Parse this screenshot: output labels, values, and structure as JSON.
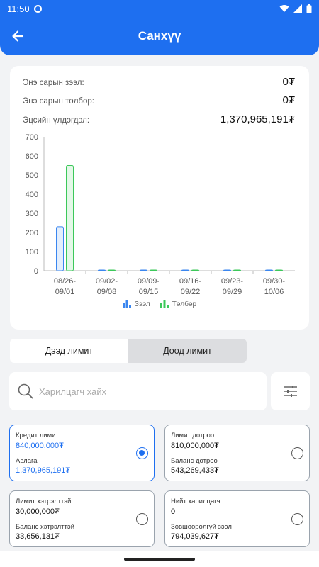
{
  "status_bar": {
    "time": "11:50"
  },
  "header": {
    "title": "Санхүү"
  },
  "stats": [
    {
      "label": "Энэ сарын зээл:",
      "value": "0₮"
    },
    {
      "label": "Энэ сарын төлбөр:",
      "value": "0₮"
    },
    {
      "label": "Эцсийн үлдэгдэл:",
      "value": "1,370,965,191₮"
    }
  ],
  "chart_data": {
    "type": "bar",
    "categories": [
      "08/26-\n09/01",
      "09/02-\n09/08",
      "09/09-\n09/15",
      "09/16-\n09/22",
      "09/23-\n09/29",
      "09/30-\n10/06"
    ],
    "category_lines": [
      [
        "08/26-",
        "09/01"
      ],
      [
        "09/02-",
        "09/08"
      ],
      [
        "09/09-",
        "09/15"
      ],
      [
        "09/16-",
        "09/22"
      ],
      [
        "09/23-",
        "09/29"
      ],
      [
        "09/30-",
        "10/06"
      ]
    ],
    "series": [
      {
        "name": "Зээл",
        "values": [
          230,
          0,
          0,
          0,
          0,
          0
        ],
        "color": "#3a86ef"
      },
      {
        "name": "Төлбөр",
        "values": [
          550,
          0,
          0,
          0,
          0,
          0
        ],
        "color": "#3cc85a"
      }
    ],
    "y_ticks": [
      0,
      100,
      200,
      300,
      400,
      500,
      600,
      700
    ],
    "ylim": [
      0,
      700
    ],
    "grid": false,
    "legend": "bottom"
  },
  "tabs": [
    {
      "label": "Дээд лимит"
    },
    {
      "label": "Доод лимит"
    }
  ],
  "search": {
    "placeholder": "Харилцагч хайх",
    "value": ""
  },
  "cards": [
    {
      "label1": "Кредит лимит",
      "value1": "840,000,000₮",
      "label2": "Авлага",
      "value2": "1,370,965,191₮"
    },
    {
      "label1": "Лимит дотроо",
      "value1": "810,000,000₮",
      "label2": "Баланс дотроо",
      "value2": "543,269,433₮"
    },
    {
      "label1": "Лимит хэтрэлттэй",
      "value1": "30,000,000₮",
      "label2": "Баланс хэтрэлттэй",
      "value2": "33,656,131₮"
    },
    {
      "label1": "Нийт харилцагч",
      "value1": "0",
      "label2": "Зөвшөөрөлгүй зээл",
      "value2": "794,039,627₮"
    }
  ],
  "colors": {
    "primary": "#1e6ff0",
    "loan": "#3a86ef",
    "payment": "#3cc85a"
  },
  "icons": {
    "back": "arrow-left-icon",
    "search": "search-icon",
    "filter": "sliders-icon"
  }
}
